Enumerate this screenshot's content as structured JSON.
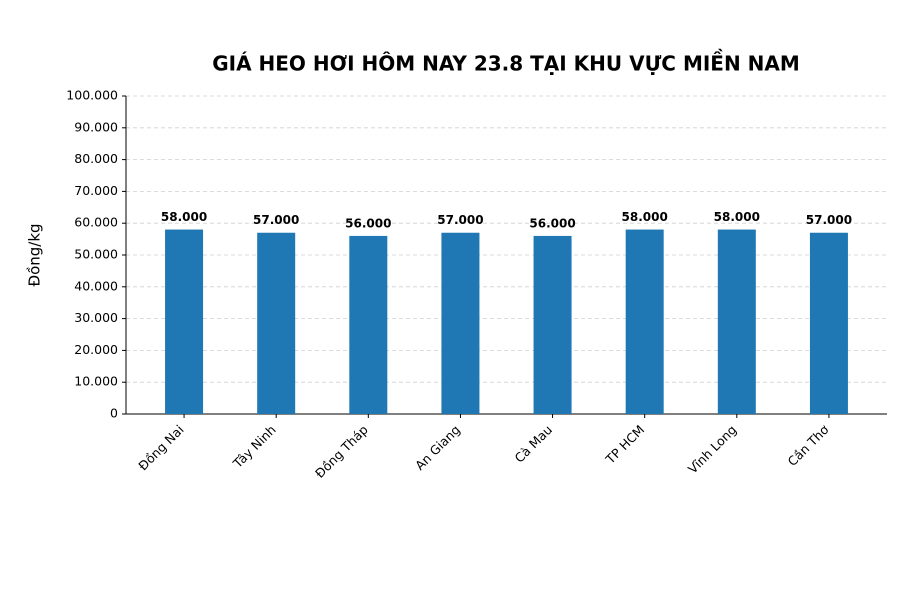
{
  "chart_data": {
    "type": "bar",
    "title": "GIÁ HEO HƠI HÔM NAY 23.8 TẠI KHU VỰC MIỀN NAM",
    "y_label": "Đồng/kg",
    "categories": [
      "Đồng Nai",
      "Tây Ninh",
      "Đồng Tháp",
      "An Giang",
      "Cà Mau",
      "TP HCM",
      "Vĩnh Long",
      "Cần Thơ"
    ],
    "values": [
      58000,
      57000,
      56000,
      57000,
      56000,
      58000,
      58000,
      57000
    ],
    "value_labels": [
      "58.000",
      "57.000",
      "56.000",
      "57.000",
      "56.000",
      "58.000",
      "58.000",
      "57.000"
    ],
    "color": "#1f77b4",
    "ylim": [
      0,
      100000
    ],
    "yticks": [
      0,
      {
        "value": 10000,
        "label": "10.000"
      },
      {
        "value": 20000,
        "label": "20.000"
      },
      {
        "value": 30000,
        "label": "30.000"
      },
      {
        "value": 40000,
        "label": "40.000"
      },
      {
        "value": 50000,
        "label": "50.000"
      },
      {
        "value": 60000,
        "label": "60.000"
      },
      {
        "value": 70000,
        "label": "70.000"
      },
      {
        "value": 80000,
        "label": "80.000"
      },
      {
        "value": 90000,
        "label": "90.000"
      },
      {
        "value": 100000,
        "label": "100.000"
      }
    ],
    "grid": true
  }
}
